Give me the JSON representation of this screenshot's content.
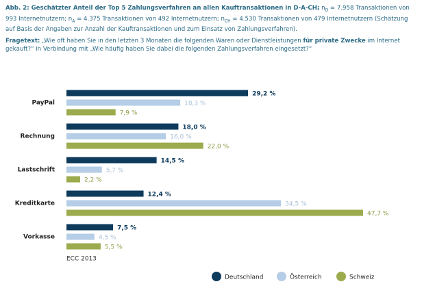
{
  "chart_data": {
    "type": "hbar",
    "title": "Abb. 2: Geschätzter Anteil der Top 5 Zahlungsverfahren an allen Kauftransaktionen in D-A-CH;",
    "note": [
      {
        "text": "n"
      },
      {
        "sub": "D"
      },
      {
        "text": " = 7.958 Transaktionen von 993 Internetnutzern; n"
      },
      {
        "sub": "A"
      },
      {
        "text": " = 4.375 Transaktionen von 492 Internetnutzern; n"
      },
      {
        "sub": "CH"
      },
      {
        "text": " = 4.530 Transaktionen von 479 Internetnutzern (Schätzung auf Basis der Angaben zur Anzahl der Kauftransaktionen und zum Einsatz von Zahlungsverfahren)."
      }
    ],
    "question": {
      "label": "Fragetext:",
      "text1": "„Wie oft haben Sie in den letzten 3 Monaten die folgenden Waren oder Dienstleistungen",
      "bold": "für private Zwecke",
      "text2": "im Internet gekauft?“ in Verbindung mit „Wie häufig haben Sie dabei die folgenden Zahlungsverfahren eingesetzt?“"
    },
    "source": "ECC 2013",
    "categories": [
      "PayPal",
      "Rechnung",
      "Lastschrift",
      "Kreditkarte",
      "Vorkasse"
    ],
    "series": [
      {
        "name": "Deutschland",
        "color": "#0e3b5c",
        "values": [
          29.2,
          18.0,
          14.5,
          12.4,
          7.5
        ],
        "value_labels": [
          "29,2 %",
          "18,0 %",
          "14,5 %",
          "12,4 %",
          "7,5 %"
        ]
      },
      {
        "name": "Österreich",
        "color": "#b5cde6",
        "values": [
          18.3,
          16.0,
          5.7,
          34.5,
          4.5
        ],
        "value_labels": [
          "18,3 %",
          "16,0 %",
          "5,7 %",
          "34,5 %",
          "4,5 %"
        ]
      },
      {
        "name": "Schweiz",
        "color": "#9bab4e",
        "values": [
          7.9,
          22.0,
          2.2,
          47.7,
          5.5
        ],
        "value_labels": [
          "7,9 %",
          "22,0 %",
          "2,2 %",
          "47,7 %",
          "5,5 %"
        ]
      }
    ],
    "legend": "bottom"
  }
}
